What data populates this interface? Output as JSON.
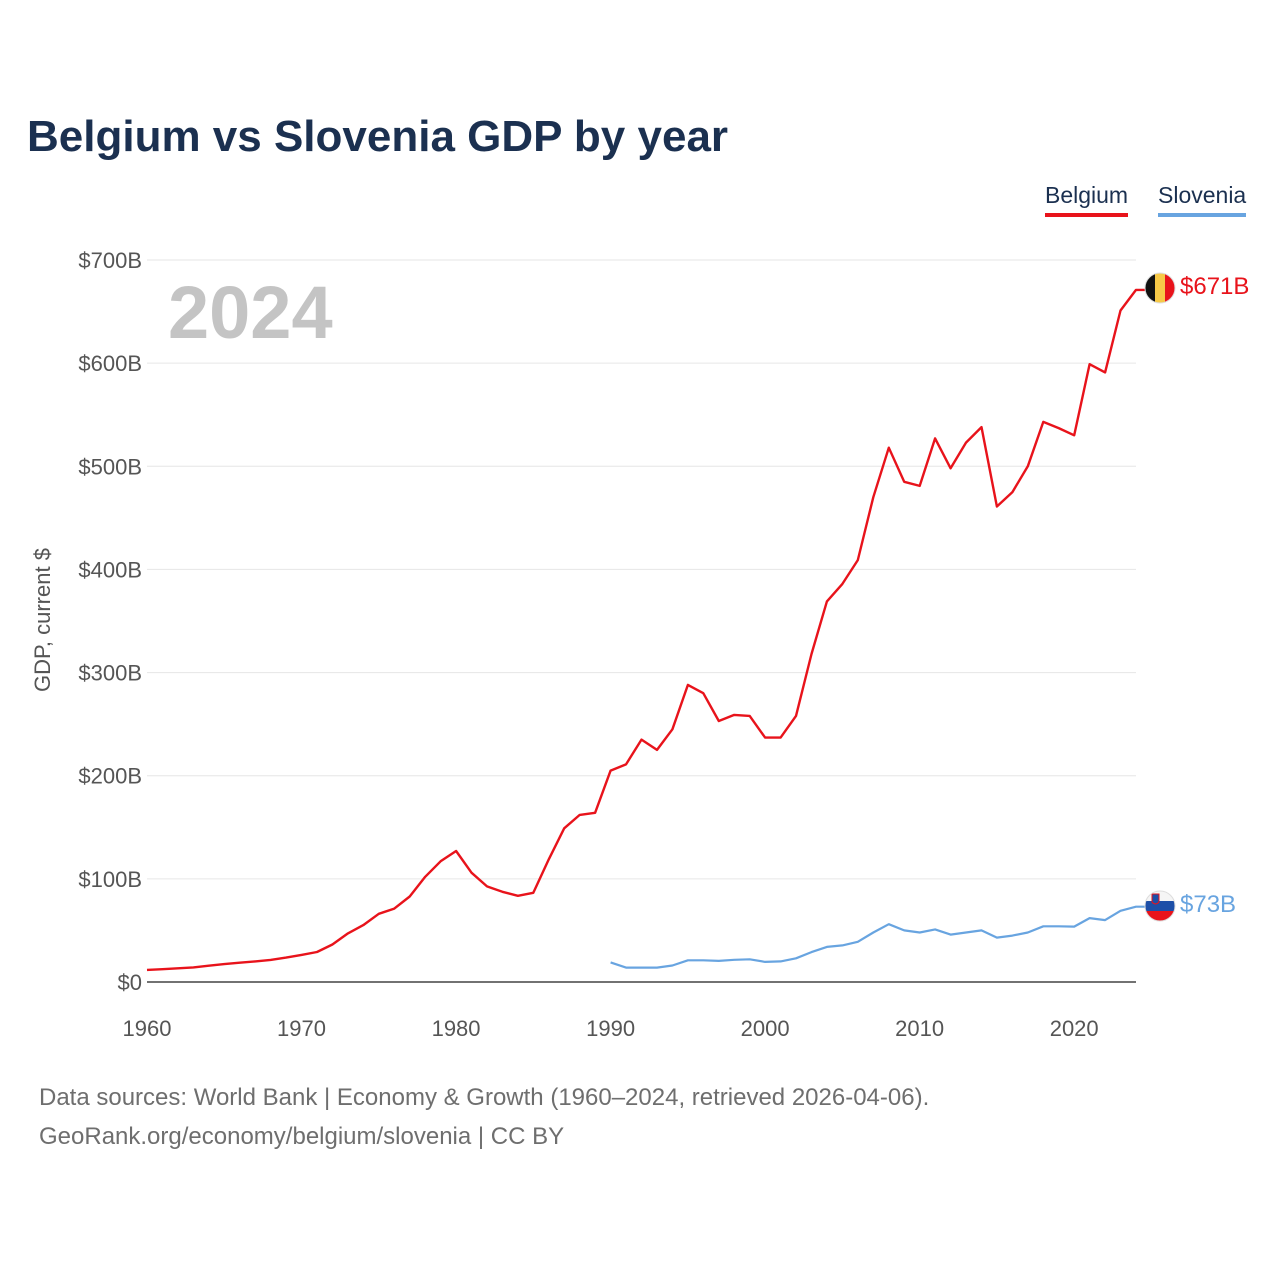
{
  "title": "Belgium vs Slovenia GDP by year",
  "legend": [
    {
      "name": "Belgium",
      "color": "#e8131b"
    },
    {
      "name": "Slovenia",
      "color": "#68a4e0"
    }
  ],
  "footer": {
    "source": "Data sources: World Bank | Economy & Growth (1960–2024, retrieved 2026-04-06).",
    "site": "GeoRank.org/economy/belgium/slovenia | CC BY"
  },
  "chart_data": {
    "type": "line",
    "title": "Belgium vs Slovenia GDP by year",
    "ylabel": "GDP, current $",
    "xlabel": "",
    "year_label": "2024",
    "xlim": [
      1960,
      2024
    ],
    "ylim": [
      0,
      700
    ],
    "y_unit": "billion USD",
    "x_ticks": [
      1960,
      1970,
      1980,
      1990,
      2000,
      2010,
      2020
    ],
    "y_ticks": [
      0,
      100,
      200,
      300,
      400,
      500,
      600,
      700
    ],
    "y_tick_labels": [
      "$0",
      "$100B",
      "$200B",
      "$300B",
      "$400B",
      "$500B",
      "$600B",
      "$700B"
    ],
    "grid": true,
    "legend_position": "top-right",
    "series": [
      {
        "name": "Belgium",
        "color": "#e8131b",
        "end_label": "$671B",
        "x": [
          1960,
          1961,
          1962,
          1963,
          1964,
          1965,
          1966,
          1967,
          1968,
          1969,
          1970,
          1971,
          1972,
          1973,
          1974,
          1975,
          1976,
          1977,
          1978,
          1979,
          1980,
          1981,
          1982,
          1983,
          1984,
          1985,
          1986,
          1987,
          1988,
          1989,
          1990,
          1991,
          1992,
          1993,
          1994,
          1995,
          1996,
          1997,
          1998,
          1999,
          2000,
          2001,
          2002,
          2003,
          2004,
          2005,
          2006,
          2007,
          2008,
          2009,
          2010,
          2011,
          2012,
          2013,
          2014,
          2015,
          2016,
          2017,
          2018,
          2019,
          2020,
          2021,
          2022,
          2023,
          2024
        ],
        "values": [
          11.7,
          12.4,
          13.3,
          14.2,
          15.8,
          17.4,
          18.7,
          20.0,
          21.4,
          23.7,
          26.3,
          29.1,
          36.4,
          47.1,
          55.2,
          66.1,
          71.2,
          82.9,
          102.0,
          117.0,
          127.0,
          106.0,
          92.7,
          87.5,
          83.6,
          86.5,
          119.0,
          149.0,
          162.0,
          164.0,
          205.0,
          211.0,
          235.0,
          225.0,
          245.0,
          288.0,
          280.0,
          253.0,
          259.0,
          258.0,
          237.0,
          237.0,
          258.0,
          318.0,
          369.0,
          386.0,
          409.0,
          470.0,
          518.0,
          485.0,
          481.0,
          527.0,
          498.0,
          523.0,
          538.0,
          461.0,
          475.0,
          500.0,
          543.0,
          537.0,
          530.0,
          599.0,
          591.0,
          651.0,
          671.0
        ]
      },
      {
        "name": "Slovenia",
        "color": "#68a4e0",
        "end_label": "$73B",
        "x": [
          1990,
          1991,
          1992,
          1993,
          1994,
          1995,
          1996,
          1997,
          1998,
          1999,
          2000,
          2001,
          2002,
          2003,
          2004,
          2005,
          2006,
          2007,
          2008,
          2009,
          2010,
          2011,
          2012,
          2013,
          2014,
          2015,
          2016,
          2017,
          2018,
          2019,
          2020,
          2021,
          2022,
          2023,
          2024
        ],
        "values": [
          19.0,
          14.0,
          14.0,
          14.0,
          16.0,
          21.0,
          21.0,
          20.5,
          21.5,
          22.0,
          19.5,
          20.0,
          23.0,
          29.0,
          34.0,
          35.5,
          39.0,
          48.0,
          56.0,
          50.0,
          48.0,
          51.0,
          46.0,
          48.0,
          50.0,
          43.0,
          45.0,
          48.0,
          54.0,
          54.0,
          53.7,
          62.0,
          60.0,
          69.0,
          73.0
        ]
      }
    ]
  }
}
